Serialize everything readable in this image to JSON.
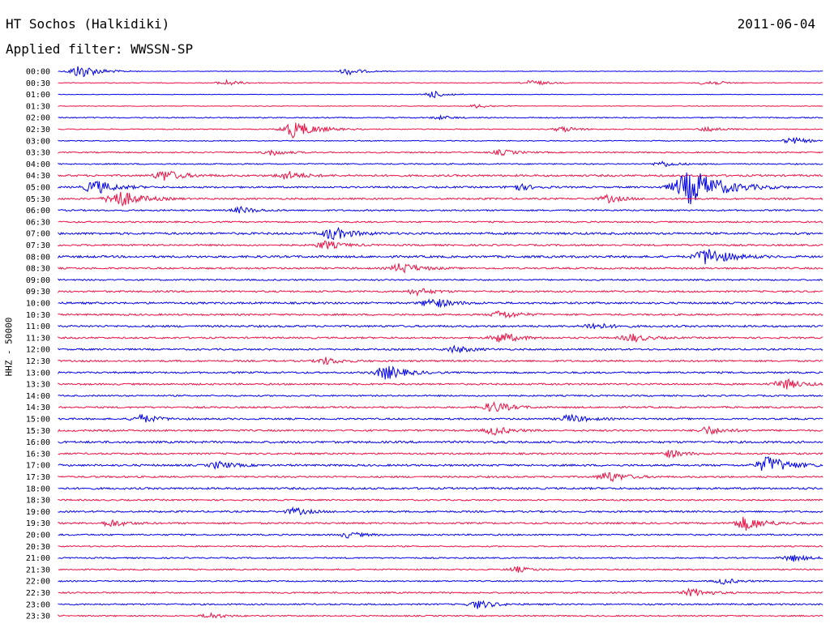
{
  "header": {
    "station": "HT Sochos (Halkidiki)",
    "date": "2011-06-04",
    "filter": "Applied filter: WWSSN-SP"
  },
  "chart_data": {
    "type": "line",
    "title": "HT Sochos (Halkidiki)",
    "subtitle": "Applied filter: WWSSN-SP",
    "date": "2011-06-04",
    "ylabel": "HHZ - 50000",
    "row_interval_minutes": 30,
    "x_range_minutes": [
      0,
      30
    ],
    "grid": false,
    "legend": "none",
    "colors": [
      "#0000ee",
      "#ee1144"
    ],
    "rows": [
      {
        "label": "00:00",
        "level": 0.25,
        "events": [
          {
            "t": 0.03,
            "amp": 2.0
          },
          {
            "t": 0.38,
            "amp": 1.0
          }
        ]
      },
      {
        "label": "00:30",
        "level": 0.35,
        "events": [
          {
            "t": 0.22,
            "amp": 0.8
          },
          {
            "t": 0.62,
            "amp": 0.8
          },
          {
            "t": 0.85,
            "amp": 0.8
          }
        ]
      },
      {
        "label": "01:00",
        "level": 0.25,
        "events": [
          {
            "t": 0.49,
            "amp": 1.0
          }
        ]
      },
      {
        "label": "01:30",
        "level": 0.3,
        "events": [
          {
            "t": 0.55,
            "amp": 0.6
          }
        ]
      },
      {
        "label": "02:00",
        "level": 0.5,
        "events": [
          {
            "t": 0.5,
            "amp": 0.5
          }
        ]
      },
      {
        "label": "02:30",
        "level": 0.45,
        "events": [
          {
            "t": 0.31,
            "amp": 2.5
          },
          {
            "t": 0.66,
            "amp": 0.8
          },
          {
            "t": 0.85,
            "amp": 0.7
          }
        ]
      },
      {
        "label": "03:00",
        "level": 0.4,
        "events": [
          {
            "t": 0.96,
            "amp": 1.0
          }
        ]
      },
      {
        "label": "03:30",
        "level": 0.6,
        "events": [
          {
            "t": 0.28,
            "amp": 0.8
          },
          {
            "t": 0.58,
            "amp": 0.8
          }
        ]
      },
      {
        "label": "04:00",
        "level": 0.55,
        "events": [
          {
            "t": 0.79,
            "amp": 0.8
          }
        ]
      },
      {
        "label": "04:30",
        "level": 0.9,
        "events": [
          {
            "t": 0.14,
            "amp": 1.6
          },
          {
            "t": 0.3,
            "amp": 1.2
          }
        ]
      },
      {
        "label": "05:00",
        "level": 0.8,
        "events": [
          {
            "t": 0.05,
            "amp": 2.0
          },
          {
            "t": 0.6,
            "amp": 1.0
          },
          {
            "t": 0.83,
            "amp": 5.0
          }
        ]
      },
      {
        "label": "05:30",
        "level": 0.8,
        "events": [
          {
            "t": 0.08,
            "amp": 2.5
          },
          {
            "t": 0.72,
            "amp": 1.0
          }
        ]
      },
      {
        "label": "06:00",
        "level": 0.7,
        "events": [
          {
            "t": 0.24,
            "amp": 0.9
          }
        ]
      },
      {
        "label": "06:30",
        "level": 0.7,
        "events": []
      },
      {
        "label": "07:00",
        "level": 1.0,
        "events": [
          {
            "t": 0.36,
            "amp": 1.8
          }
        ]
      },
      {
        "label": "07:30",
        "level": 0.8,
        "events": [
          {
            "t": 0.35,
            "amp": 1.2
          }
        ]
      },
      {
        "label": "08:00",
        "level": 1.0,
        "events": [
          {
            "t": 0.85,
            "amp": 2.5
          }
        ]
      },
      {
        "label": "08:30",
        "level": 0.8,
        "events": [
          {
            "t": 0.45,
            "amp": 1.5
          }
        ]
      },
      {
        "label": "09:00",
        "level": 0.7,
        "events": []
      },
      {
        "label": "09:30",
        "level": 0.8,
        "events": [
          {
            "t": 0.47,
            "amp": 1.0
          }
        ]
      },
      {
        "label": "10:00",
        "level": 0.9,
        "events": [
          {
            "t": 0.49,
            "amp": 1.5
          }
        ]
      },
      {
        "label": "10:30",
        "level": 0.8,
        "events": [
          {
            "t": 0.58,
            "amp": 1.2
          }
        ]
      },
      {
        "label": "11:00",
        "level": 0.9,
        "events": [
          {
            "t": 0.7,
            "amp": 1.0
          }
        ]
      },
      {
        "label": "11:30",
        "level": 0.8,
        "events": [
          {
            "t": 0.58,
            "amp": 1.5
          },
          {
            "t": 0.75,
            "amp": 1.2
          }
        ]
      },
      {
        "label": "12:00",
        "level": 0.8,
        "events": [
          {
            "t": 0.52,
            "amp": 1.0
          }
        ]
      },
      {
        "label": "12:30",
        "level": 0.8,
        "events": [
          {
            "t": 0.35,
            "amp": 1.0
          }
        ]
      },
      {
        "label": "13:00",
        "level": 0.8,
        "events": [
          {
            "t": 0.43,
            "amp": 2.0
          }
        ]
      },
      {
        "label": "13:30",
        "level": 0.8,
        "events": [
          {
            "t": 0.95,
            "amp": 1.5
          }
        ]
      },
      {
        "label": "14:00",
        "level": 0.7,
        "events": []
      },
      {
        "label": "14:30",
        "level": 0.8,
        "events": [
          {
            "t": 0.57,
            "amp": 1.5
          }
        ]
      },
      {
        "label": "15:00",
        "level": 0.8,
        "events": [
          {
            "t": 0.11,
            "amp": 1.2
          },
          {
            "t": 0.67,
            "amp": 1.2
          }
        ]
      },
      {
        "label": "15:30",
        "level": 0.8,
        "events": [
          {
            "t": 0.57,
            "amp": 1.2
          },
          {
            "t": 0.85,
            "amp": 1.2
          }
        ]
      },
      {
        "label": "16:00",
        "level": 1.0,
        "events": []
      },
      {
        "label": "16:30",
        "level": 0.8,
        "events": [
          {
            "t": 0.8,
            "amp": 1.0
          }
        ]
      },
      {
        "label": "17:00",
        "level": 0.9,
        "events": [
          {
            "t": 0.21,
            "amp": 1.0
          },
          {
            "t": 0.93,
            "amp": 2.5
          }
        ]
      },
      {
        "label": "17:30",
        "level": 0.8,
        "events": [
          {
            "t": 0.72,
            "amp": 1.5
          }
        ]
      },
      {
        "label": "18:00",
        "level": 0.9,
        "events": []
      },
      {
        "label": "18:30",
        "level": 0.7,
        "events": []
      },
      {
        "label": "19:00",
        "level": 0.8,
        "events": [
          {
            "t": 0.31,
            "amp": 1.0
          }
        ]
      },
      {
        "label": "19:30",
        "level": 0.8,
        "events": [
          {
            "t": 0.07,
            "amp": 1.0
          },
          {
            "t": 0.9,
            "amp": 2.0
          }
        ]
      },
      {
        "label": "20:00",
        "level": 0.7,
        "events": [
          {
            "t": 0.38,
            "amp": 0.8
          }
        ]
      },
      {
        "label": "20:30",
        "level": 0.6,
        "events": []
      },
      {
        "label": "21:00",
        "level": 0.6,
        "events": [
          {
            "t": 0.96,
            "amp": 1.0
          }
        ]
      },
      {
        "label": "21:30",
        "level": 0.6,
        "events": [
          {
            "t": 0.6,
            "amp": 0.8
          }
        ]
      },
      {
        "label": "22:00",
        "level": 0.6,
        "events": [
          {
            "t": 0.87,
            "amp": 0.8
          }
        ]
      },
      {
        "label": "22:30",
        "level": 0.7,
        "events": [
          {
            "t": 0.83,
            "amp": 1.2
          }
        ]
      },
      {
        "label": "23:00",
        "level": 0.7,
        "events": [
          {
            "t": 0.55,
            "amp": 1.2
          }
        ]
      },
      {
        "label": "23:30",
        "level": 0.6,
        "events": [
          {
            "t": 0.2,
            "amp": 0.8
          }
        ]
      }
    ]
  }
}
